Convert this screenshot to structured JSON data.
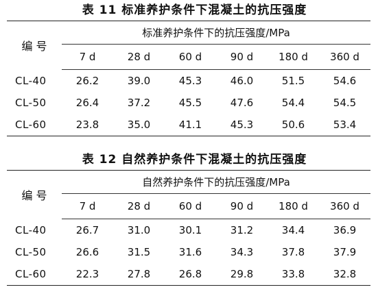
{
  "tables": [
    {
      "caption": "表 11   标准养护条件下混凝土的抗压强度",
      "id_header": "编  号",
      "group_header": "标准养护条件下的抗压强度/MPa",
      "days": [
        "7 d",
        "28 d",
        "60 d",
        "90 d",
        "180 d",
        "360 d"
      ],
      "rows": [
        {
          "id": "CL-40",
          "values": [
            "26.2",
            "39.0",
            "45.3",
            "46.0",
            "51.5",
            "54.6"
          ]
        },
        {
          "id": "CL-50",
          "values": [
            "26.4",
            "37.2",
            "45.5",
            "47.6",
            "54.4",
            "54.5"
          ]
        },
        {
          "id": "CL-60",
          "values": [
            "23.8",
            "35.0",
            "41.1",
            "45.3",
            "50.6",
            "53.4"
          ]
        }
      ]
    },
    {
      "caption": "表 12   自然养护条件下混凝土的抗压强度",
      "id_header": "编  号",
      "group_header": "自然养护条件下的抗压强度/MPa",
      "days": [
        "7 d",
        "28 d",
        "60 d",
        "90 d",
        "180 d",
        "360 d"
      ],
      "rows": [
        {
          "id": "CL-40",
          "values": [
            "26.7",
            "31.0",
            "30.1",
            "31.2",
            "34.4",
            "36.9"
          ]
        },
        {
          "id": "CL-50",
          "values": [
            "26.6",
            "31.5",
            "31.6",
            "34.3",
            "37.8",
            "37.9"
          ]
        },
        {
          "id": "CL-60",
          "values": [
            "22.3",
            "27.8",
            "26.8",
            "29.8",
            "33.8",
            "32.8"
          ]
        }
      ]
    }
  ]
}
